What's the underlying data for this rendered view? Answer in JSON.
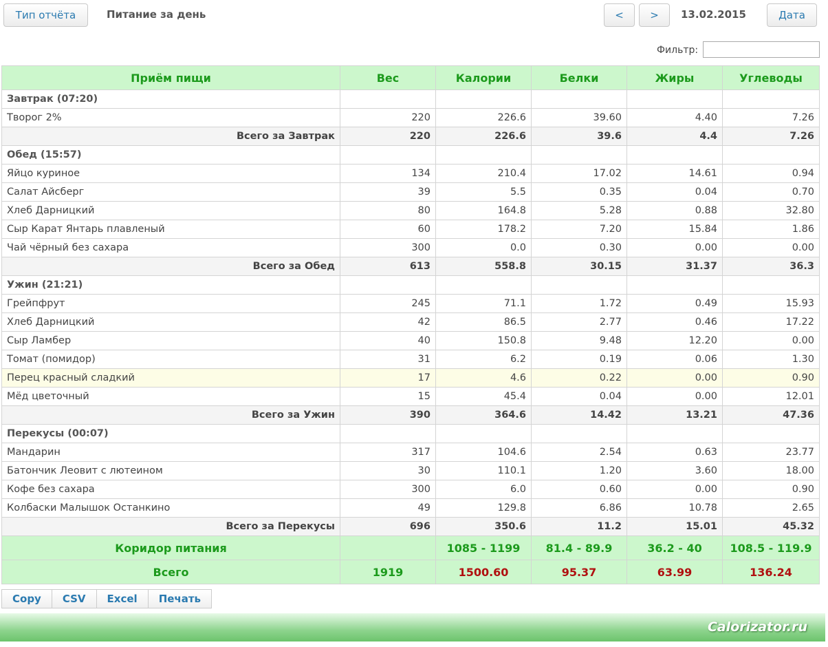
{
  "toolbar": {
    "report_type": "Тип отчёта",
    "title": "Питание за день",
    "prev": "<",
    "next": ">",
    "date": "13.02.2015",
    "date_button": "Дата"
  },
  "filter": {
    "label": "Фильтр:"
  },
  "table": {
    "headers": [
      "Приём пищи",
      "Вес",
      "Калории",
      "Белки",
      "Жиры",
      "Углеводы"
    ],
    "sections": [
      {
        "title": "Завтрак (07:20)",
        "rows": [
          [
            "Творог 2%",
            "220",
            "226.6",
            "39.60",
            "4.40",
            "7.26"
          ]
        ],
        "total": [
          "Всего за Завтрак",
          "220",
          "226.6",
          "39.6",
          "4.4",
          "7.26"
        ]
      },
      {
        "title": "Обед (15:57)",
        "rows": [
          [
            "Яйцо куриное",
            "134",
            "210.4",
            "17.02",
            "14.61",
            "0.94"
          ],
          [
            "Салат Айсберг",
            "39",
            "5.5",
            "0.35",
            "0.04",
            "0.70"
          ],
          [
            "Хлеб Дарницкий",
            "80",
            "164.8",
            "5.28",
            "0.88",
            "32.80"
          ],
          [
            "Сыр Карат Янтарь плавленый",
            "60",
            "178.2",
            "7.20",
            "15.84",
            "1.86"
          ],
          [
            "Чай чёрный без сахара",
            "300",
            "0.0",
            "0.30",
            "0.00",
            "0.00"
          ]
        ],
        "total": [
          "Всего за Обед",
          "613",
          "558.8",
          "30.15",
          "31.37",
          "36.3"
        ]
      },
      {
        "title": "Ужин (21:21)",
        "rows": [
          [
            "Грейпфрут",
            "245",
            "71.1",
            "1.72",
            "0.49",
            "15.93"
          ],
          [
            "Хлеб Дарницкий",
            "42",
            "86.5",
            "2.77",
            "0.46",
            "17.22"
          ],
          [
            "Сыр Ламбер",
            "40",
            "150.8",
            "9.48",
            "12.20",
            "0.00"
          ],
          [
            "Томат (помидор)",
            "31",
            "6.2",
            "0.19",
            "0.06",
            "1.30"
          ],
          [
            "Перец красный сладкий",
            "17",
            "4.6",
            "0.22",
            "0.00",
            "0.90"
          ],
          [
            "Мёд цветочный",
            "15",
            "45.4",
            "0.04",
            "0.00",
            "12.01"
          ]
        ],
        "total": [
          "Всего за Ужин",
          "390",
          "364.6",
          "14.42",
          "13.21",
          "47.36"
        ]
      },
      {
        "title": "Перекусы (00:07)",
        "rows": [
          [
            "Мандарин",
            "317",
            "104.6",
            "2.54",
            "0.63",
            "23.77"
          ],
          [
            "Батончик Леовит с лютеином",
            "30",
            "110.1",
            "1.20",
            "3.60",
            "18.00"
          ],
          [
            "Кофе без сахара",
            "300",
            "6.0",
            "0.60",
            "0.00",
            "0.90"
          ],
          [
            "Колбаски Малышок Останкино",
            "49",
            "129.8",
            "6.86",
            "10.78",
            "2.65"
          ]
        ],
        "total": [
          "Всего за Перекусы",
          "696",
          "350.6",
          "11.2",
          "15.01",
          "45.32"
        ]
      }
    ],
    "corridor": [
      "Коридор питания",
      null,
      "1085 - 1199",
      "81.4 - 89.9",
      "36.2 - 40",
      "108.5 - 119.9"
    ],
    "grand_total": [
      "Всего",
      "1919",
      "1500.60",
      "95.37",
      "63.99",
      "136.24"
    ]
  },
  "buttons": [
    "Copy",
    "CSV",
    "Excel",
    "Печать"
  ],
  "footer": {
    "brand": "Calorizator.ru"
  }
}
